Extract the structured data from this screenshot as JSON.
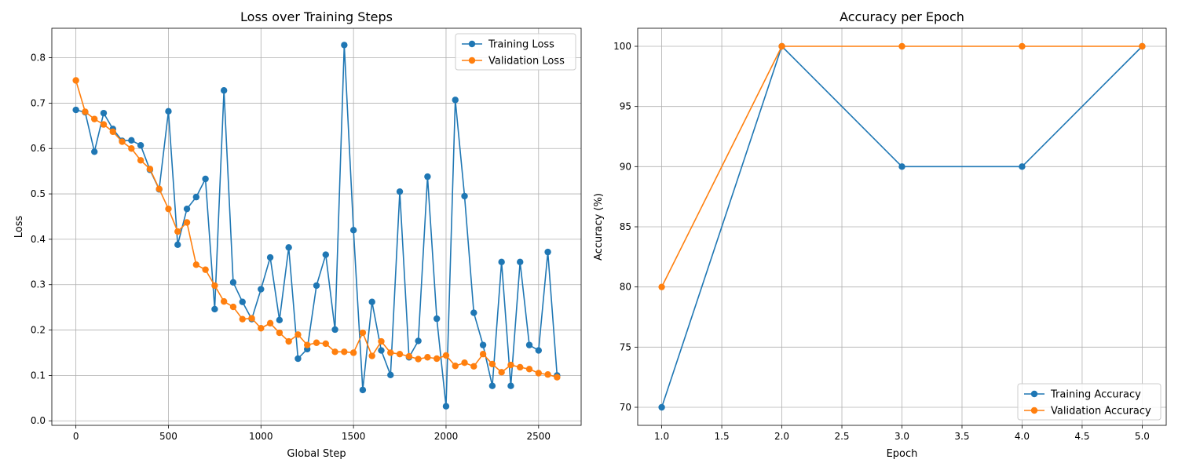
{
  "colors": {
    "series_a": "#1f77b4",
    "series_b": "#ff7f0e",
    "grid": "#b0b0b0",
    "axis": "#000000"
  },
  "chart_data": [
    {
      "type": "line",
      "title": "Loss over Training Steps",
      "xlabel": "Global Step",
      "ylabel": "Loss",
      "xlim": [
        -130,
        2730
      ],
      "ylim": [
        -0.01,
        0.865
      ],
      "xticks": [
        0,
        500,
        1000,
        1500,
        2000,
        2500
      ],
      "yticks": [
        0.0,
        0.1,
        0.2,
        0.3,
        0.4,
        0.5,
        0.6,
        0.7,
        0.8
      ],
      "xtick_labels": [
        "0",
        "500",
        "1000",
        "1500",
        "2000",
        "2500"
      ],
      "ytick_labels": [
        "0.0",
        "0.1",
        "0.2",
        "0.3",
        "0.4",
        "0.5",
        "0.6",
        "0.7",
        "0.8"
      ],
      "grid": true,
      "legend": "upper-right",
      "series": [
        {
          "name": "Training Loss",
          "color": "#1f77b4",
          "x": [
            0,
            50,
            100,
            150,
            200,
            250,
            300,
            350,
            400,
            450,
            500,
            550,
            600,
            650,
            700,
            750,
            800,
            850,
            900,
            950,
            1000,
            1050,
            1100,
            1150,
            1200,
            1250,
            1300,
            1350,
            1400,
            1450,
            1500,
            1550,
            1600,
            1650,
            1700,
            1750,
            1800,
            1850,
            1900,
            1950,
            2000,
            2050,
            2100,
            2150,
            2200,
            2250,
            2300,
            2350,
            2400,
            2450,
            2500,
            2550,
            2600
          ],
          "y": [
            0.685,
            0.68,
            0.593,
            0.678,
            0.643,
            0.617,
            0.618,
            0.607,
            0.553,
            0.51,
            0.682,
            0.388,
            0.467,
            0.493,
            0.533,
            0.246,
            0.728,
            0.305,
            0.262,
            0.224,
            0.29,
            0.36,
            0.222,
            0.382,
            0.137,
            0.158,
            0.298,
            0.366,
            0.201,
            0.828,
            0.42,
            0.068,
            0.262,
            0.155,
            0.101,
            0.505,
            0.14,
            0.176,
            0.538,
            0.225,
            0.032,
            0.707,
            0.495,
            0.238,
            0.167,
            0.077,
            0.35,
            0.077,
            0.35,
            0.167,
            0.155,
            0.372,
            0.1
          ]
        },
        {
          "name": "Validation Loss",
          "color": "#ff7f0e",
          "x": [
            0,
            50,
            100,
            150,
            200,
            250,
            300,
            350,
            400,
            450,
            500,
            550,
            600,
            650,
            700,
            750,
            800,
            850,
            900,
            950,
            1000,
            1050,
            1100,
            1150,
            1200,
            1250,
            1300,
            1350,
            1400,
            1450,
            1500,
            1550,
            1600,
            1650,
            1700,
            1750,
            1800,
            1850,
            1900,
            1950,
            2000,
            2050,
            2100,
            2150,
            2200,
            2250,
            2300,
            2350,
            2400,
            2450,
            2500,
            2550,
            2600
          ],
          "y": [
            0.75,
            0.681,
            0.665,
            0.653,
            0.637,
            0.615,
            0.6,
            0.574,
            0.555,
            0.511,
            0.467,
            0.417,
            0.437,
            0.344,
            0.333,
            0.298,
            0.263,
            0.251,
            0.224,
            0.226,
            0.204,
            0.215,
            0.194,
            0.175,
            0.19,
            0.167,
            0.172,
            0.17,
            0.152,
            0.152,
            0.15,
            0.194,
            0.143,
            0.175,
            0.15,
            0.147,
            0.142,
            0.136,
            0.14,
            0.137,
            0.144,
            0.121,
            0.128,
            0.12,
            0.147,
            0.125,
            0.107,
            0.123,
            0.118,
            0.114,
            0.105,
            0.102,
            0.096
          ]
        }
      ]
    },
    {
      "type": "line",
      "title": "Accuracy per Epoch",
      "xlabel": "Epoch",
      "ylabel": "Accuracy (%)",
      "xlim": [
        0.8,
        5.2
      ],
      "ylim": [
        68.5,
        101.5
      ],
      "xticks": [
        1.0,
        1.5,
        2.0,
        2.5,
        3.0,
        3.5,
        4.0,
        4.5,
        5.0
      ],
      "yticks": [
        70,
        75,
        80,
        85,
        90,
        95,
        100
      ],
      "xtick_labels": [
        "1.0",
        "1.5",
        "2.0",
        "2.5",
        "3.0",
        "3.5",
        "4.0",
        "4.5",
        "5.0"
      ],
      "ytick_labels": [
        "70",
        "75",
        "80",
        "85",
        "90",
        "95",
        "100"
      ],
      "grid": true,
      "legend": "lower-right",
      "series": [
        {
          "name": "Training Accuracy",
          "color": "#1f77b4",
          "x": [
            1,
            2,
            3,
            4,
            5
          ],
          "y": [
            70,
            100,
            90,
            90,
            100
          ]
        },
        {
          "name": "Validation Accuracy",
          "color": "#ff7f0e",
          "x": [
            1,
            2,
            3,
            4,
            5
          ],
          "y": [
            80,
            100,
            100,
            100,
            100
          ]
        }
      ]
    }
  ]
}
